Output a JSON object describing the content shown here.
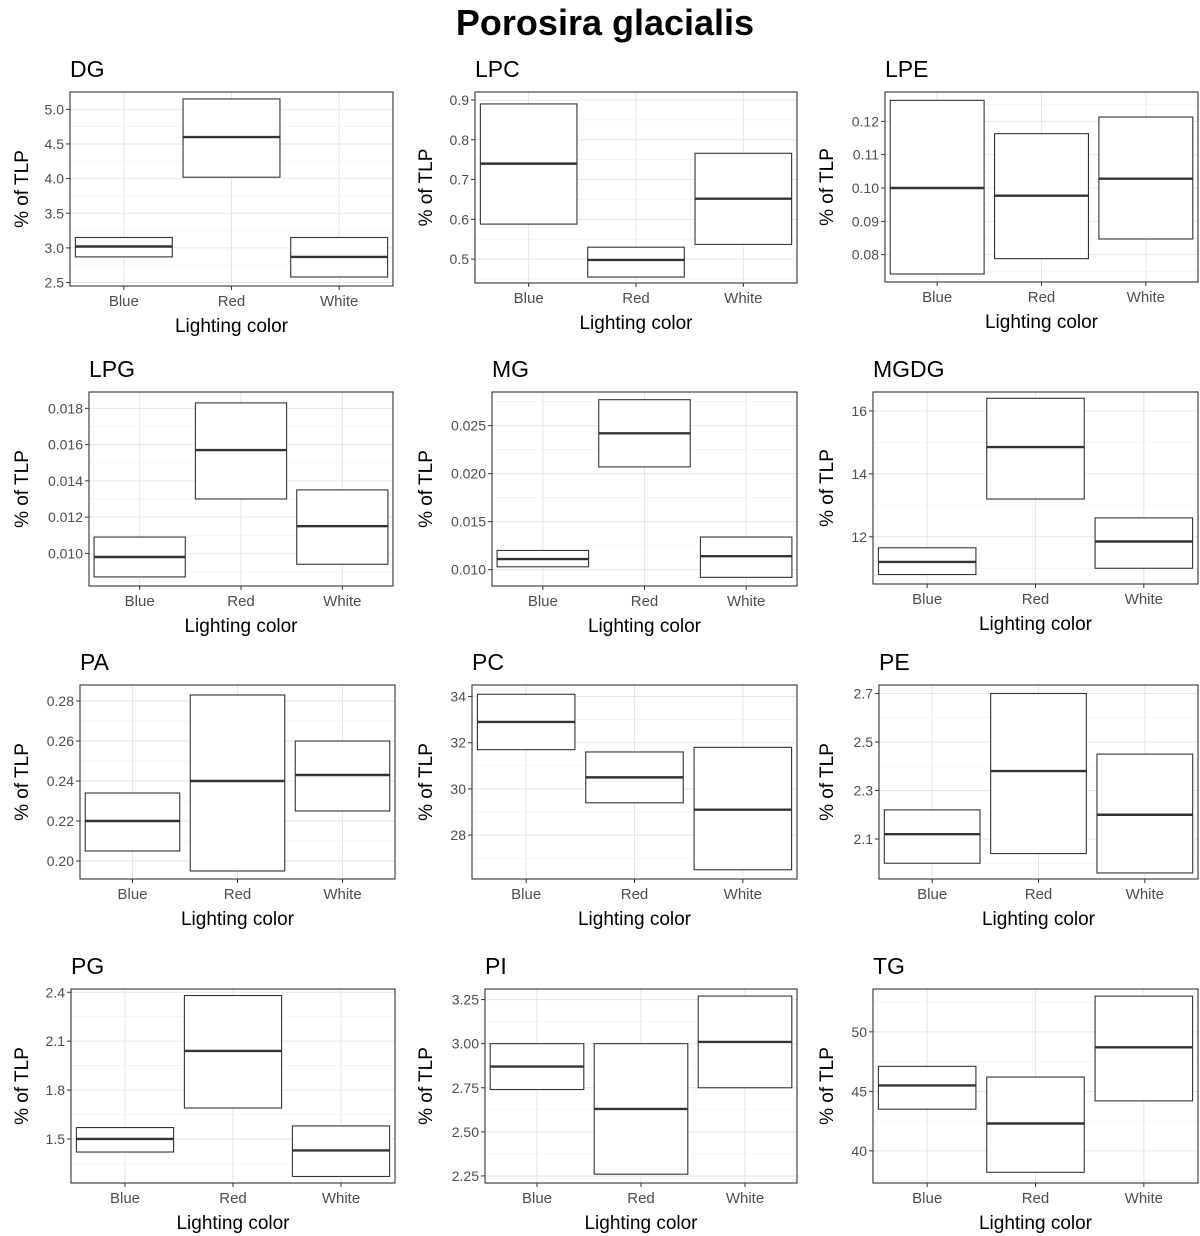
{
  "title": "Porosira glacialis",
  "chart_data": [
    {
      "type": "box",
      "title": "DG",
      "xlabel": "Lighting color",
      "ylabel": "% of TLP",
      "categories": [
        "Blue",
        "Red",
        "White"
      ],
      "ylim": [
        2.45,
        5.25
      ],
      "yticks": [
        2.5,
        3.0,
        3.5,
        4.0,
        4.5,
        5.0
      ],
      "ytick_labels": [
        "2.5",
        "3.0",
        "3.5",
        "4.0",
        "4.5",
        "5.0"
      ],
      "boxes": [
        {
          "low": 2.87,
          "mid": 3.02,
          "high": 3.15
        },
        {
          "low": 4.02,
          "mid": 4.6,
          "high": 5.15
        },
        {
          "low": 2.58,
          "mid": 2.87,
          "high": 3.15
        }
      ]
    },
    {
      "type": "box",
      "title": "LPC",
      "xlabel": "Lighting color",
      "ylabel": "% of TLP",
      "categories": [
        "Blue",
        "Red",
        "White"
      ],
      "ylim": [
        0.44,
        0.92
      ],
      "yticks": [
        0.5,
        0.6,
        0.7,
        0.8,
        0.9
      ],
      "ytick_labels": [
        "0.5",
        "0.6",
        "0.7",
        "0.8",
        "0.9"
      ],
      "boxes": [
        {
          "low": 0.588,
          "mid": 0.74,
          "high": 0.89
        },
        {
          "low": 0.455,
          "mid": 0.498,
          "high": 0.53
        },
        {
          "low": 0.537,
          "mid": 0.652,
          "high": 0.766
        }
      ]
    },
    {
      "type": "box",
      "title": "LPE",
      "xlabel": "Lighting color",
      "ylabel": "% of TLP",
      "categories": [
        "Blue",
        "Red",
        "White"
      ],
      "ylim": [
        0.0718,
        0.1288
      ],
      "yticks": [
        0.08,
        0.09,
        0.1,
        0.11,
        0.12
      ],
      "ytick_labels": [
        "0.08",
        "0.09",
        "0.10",
        "0.11",
        "0.12"
      ],
      "boxes": [
        {
          "low": 0.0742,
          "mid": 0.1,
          "high": 0.1263
        },
        {
          "low": 0.0788,
          "mid": 0.0977,
          "high": 0.1163
        },
        {
          "low": 0.0847,
          "mid": 0.1028,
          "high": 0.1213
        }
      ]
    },
    {
      "type": "box",
      "title": "LPG",
      "xlabel": "Lighting color",
      "ylabel": "% of TLP",
      "categories": [
        "Blue",
        "Red",
        "White"
      ],
      "ylim": [
        0.0082,
        0.0189
      ],
      "yticks": [
        0.01,
        0.012,
        0.014,
        0.016,
        0.018
      ],
      "ytick_labels": [
        "0.010",
        "0.012",
        "0.014",
        "0.016",
        "0.018"
      ],
      "boxes": [
        {
          "low": 0.0087,
          "mid": 0.0098,
          "high": 0.0109
        },
        {
          "low": 0.013,
          "mid": 0.0157,
          "high": 0.0183
        },
        {
          "low": 0.0094,
          "mid": 0.0115,
          "high": 0.0135
        }
      ]
    },
    {
      "type": "box",
      "title": "MG",
      "xlabel": "Lighting color",
      "ylabel": "% of TLP",
      "categories": [
        "Blue",
        "Red",
        "White"
      ],
      "ylim": [
        0.0083,
        0.0285
      ],
      "yticks": [
        0.01,
        0.015,
        0.02,
        0.025
      ],
      "ytick_labels": [
        "0.010",
        "0.015",
        "0.020",
        "0.025"
      ],
      "boxes": [
        {
          "low": 0.0103,
          "mid": 0.0111,
          "high": 0.012
        },
        {
          "low": 0.0207,
          "mid": 0.0242,
          "high": 0.0277
        },
        {
          "low": 0.0092,
          "mid": 0.0114,
          "high": 0.0134
        }
      ]
    },
    {
      "type": "box",
      "title": "MGDG",
      "xlabel": "Lighting color",
      "ylabel": "% of TLP",
      "categories": [
        "Blue",
        "Red",
        "White"
      ],
      "ylim": [
        10.5,
        16.6
      ],
      "yticks": [
        12,
        14,
        16
      ],
      "ytick_labels": [
        "12",
        "14",
        "16"
      ],
      "boxes": [
        {
          "low": 10.8,
          "mid": 11.2,
          "high": 11.65
        },
        {
          "low": 13.2,
          "mid": 14.85,
          "high": 16.4
        },
        {
          "low": 11.0,
          "mid": 11.85,
          "high": 12.6
        }
      ]
    },
    {
      "type": "box",
      "title": "PA",
      "xlabel": "Lighting color",
      "ylabel": "% of TLP",
      "categories": [
        "Blue",
        "Red",
        "White"
      ],
      "ylim": [
        0.191,
        0.288
      ],
      "yticks": [
        0.2,
        0.22,
        0.24,
        0.26,
        0.28
      ],
      "ytick_labels": [
        "0.20",
        "0.22",
        "0.24",
        "0.26",
        "0.28"
      ],
      "boxes": [
        {
          "low": 0.205,
          "mid": 0.22,
          "high": 0.234
        },
        {
          "low": 0.195,
          "mid": 0.24,
          "high": 0.283
        },
        {
          "low": 0.225,
          "mid": 0.243,
          "high": 0.26
        }
      ]
    },
    {
      "type": "box",
      "title": "PC",
      "xlabel": "Lighting color",
      "ylabel": "% of TLP",
      "categories": [
        "Blue",
        "Red",
        "White"
      ],
      "ylim": [
        26.1,
        34.5
      ],
      "yticks": [
        28,
        30,
        32,
        34
      ],
      "ytick_labels": [
        "28",
        "30",
        "32",
        "34"
      ],
      "boxes": [
        {
          "low": 31.7,
          "mid": 32.9,
          "high": 34.1
        },
        {
          "low": 29.4,
          "mid": 30.5,
          "high": 31.6
        },
        {
          "low": 26.5,
          "mid": 29.1,
          "high": 31.8
        }
      ]
    },
    {
      "type": "box",
      "title": "PE",
      "xlabel": "Lighting color",
      "ylabel": "% of TLP",
      "categories": [
        "Blue",
        "Red",
        "White"
      ],
      "ylim": [
        1.935,
        2.735
      ],
      "yticks": [
        2.1,
        2.3,
        2.5,
        2.7
      ],
      "ytick_labels": [
        "2.1",
        "2.3",
        "2.5",
        "2.7"
      ],
      "boxes": [
        {
          "low": 2.0,
          "mid": 2.12,
          "high": 2.22
        },
        {
          "low": 2.04,
          "mid": 2.38,
          "high": 2.7
        },
        {
          "low": 1.96,
          "mid": 2.2,
          "high": 2.45
        }
      ]
    },
    {
      "type": "box",
      "title": "PG",
      "xlabel": "Lighting color",
      "ylabel": "% of TLP",
      "categories": [
        "Blue",
        "Red",
        "White"
      ],
      "ylim": [
        1.23,
        2.42
      ],
      "yticks": [
        1.5,
        1.8,
        2.1,
        2.4
      ],
      "ytick_labels": [
        "1.5",
        "1.8",
        "2.1",
        "2.4"
      ],
      "boxes": [
        {
          "low": 1.42,
          "mid": 1.5,
          "high": 1.57
        },
        {
          "low": 1.69,
          "mid": 2.04,
          "high": 2.38
        },
        {
          "low": 1.27,
          "mid": 1.43,
          "high": 1.58
        }
      ]
    },
    {
      "type": "box",
      "title": "PI",
      "xlabel": "Lighting color",
      "ylabel": "% of TLP",
      "categories": [
        "Blue",
        "Red",
        "White"
      ],
      "ylim": [
        2.21,
        3.31
      ],
      "yticks": [
        2.25,
        2.5,
        2.75,
        3.0,
        3.25
      ],
      "ytick_labels": [
        "2.25",
        "2.50",
        "2.75",
        "3.00",
        "3.25"
      ],
      "boxes": [
        {
          "low": 2.74,
          "mid": 2.87,
          "high": 3.0
        },
        {
          "low": 2.26,
          "mid": 2.63,
          "high": 3.0
        },
        {
          "low": 2.75,
          "mid": 3.01,
          "high": 3.27
        }
      ]
    },
    {
      "type": "box",
      "title": "TG",
      "xlabel": "Lighting color",
      "ylabel": "% of TLP",
      "categories": [
        "Blue",
        "Red",
        "White"
      ],
      "ylim": [
        37.3,
        53.6
      ],
      "yticks": [
        40,
        45,
        50
      ],
      "ytick_labels": [
        "40",
        "45",
        "50"
      ],
      "boxes": [
        {
          "low": 43.5,
          "mid": 45.5,
          "high": 47.1
        },
        {
          "low": 38.2,
          "mid": 42.3,
          "high": 46.2
        },
        {
          "low": 44.2,
          "mid": 48.7,
          "high": 53.0
        }
      ]
    }
  ]
}
